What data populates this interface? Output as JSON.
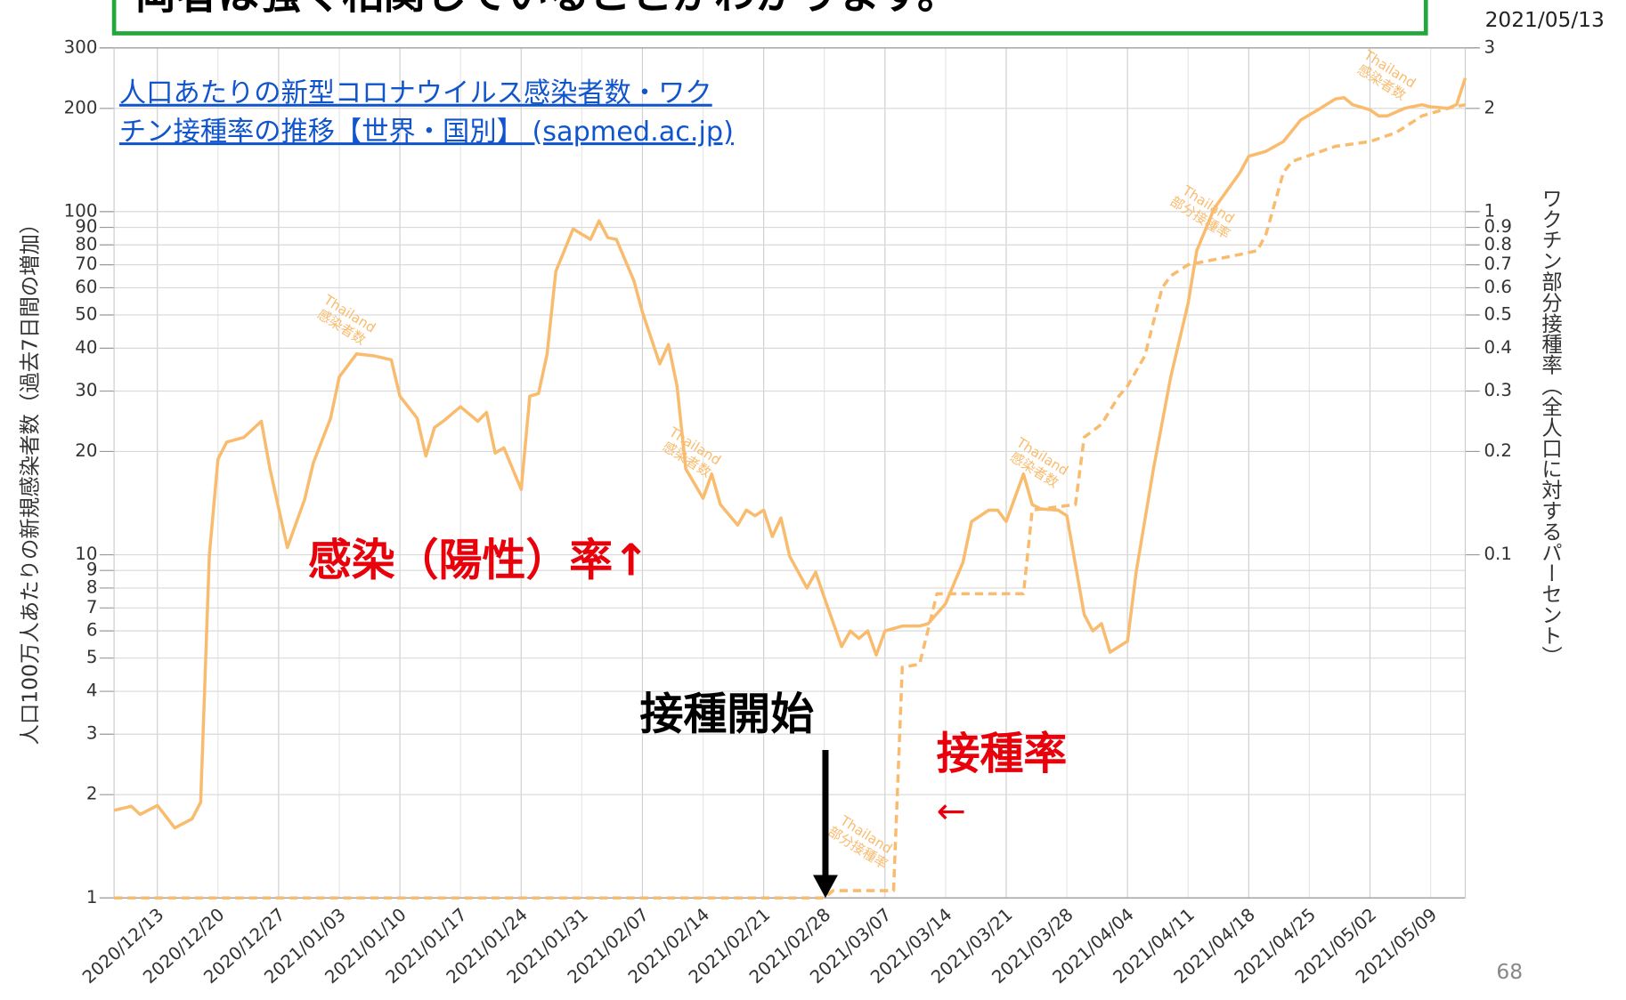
{
  "heading": "両者は強く相関していることがわかります。",
  "date": "2021/05/13",
  "page_number": "68",
  "link_lines": [
    "人口あたりの新型コロナウイルス感染者数・ワク",
    "チン接種率の推移【世界・国別】 (sapmed.ac.jp)"
  ],
  "callouts": {
    "infection_rate": "感染（陽性）率↑",
    "vaccination_start": "接種開始",
    "vaccination_rate": "接種率",
    "arrow": "←"
  },
  "chart_data": {
    "type": "line",
    "ylabel": "人口100万人あたりの新規感染者数（過去7日間の増加）",
    "y2label": "ワクチン部分接種率（全人口に対するパーセント）",
    "ylog": true,
    "y2log": true,
    "grid": true,
    "xlim": [
      "2020/12/08",
      "2021/05/13"
    ],
    "xticks": [
      "2020/12/13",
      "2020/12/20",
      "2020/12/27",
      "2021/01/03",
      "2021/01/10",
      "2021/01/17",
      "2021/01/24",
      "2021/01/31",
      "2021/02/07",
      "2021/02/14",
      "2021/02/21",
      "2021/02/28",
      "2021/03/07",
      "2021/03/14",
      "2021/03/21",
      "2021/03/28",
      "2021/04/04",
      "2021/04/11",
      "2021/04/18",
      "2021/04/25",
      "2021/05/02",
      "2021/05/09"
    ],
    "ylim": [
      1,
      300
    ],
    "yticks": [
      1,
      2,
      3,
      4,
      5,
      6,
      7,
      8,
      9,
      10,
      20,
      30,
      40,
      50,
      60,
      70,
      80,
      90,
      100,
      200,
      300
    ],
    "y2lim": [
      0.01,
      3
    ],
    "y2ticks": [
      0.1,
      0.2,
      0.3,
      0.4,
      0.5,
      0.6,
      0.7,
      0.8,
      0.9,
      1,
      2,
      3
    ],
    "annotations": [
      [
        "Thailand",
        "感染者数"
      ],
      [
        "Thailand",
        "感染者数"
      ],
      [
        "Thailand",
        "感染者数"
      ],
      [
        "Thailand",
        "感染者数"
      ],
      [
        "Thailand",
        "部分接種率"
      ],
      [
        "Thailand",
        "部分接種率"
      ]
    ],
    "annotation_color": "#f9bb6e",
    "series": [
      {
        "color": "#f9bb6e",
        "linestyle": "solid",
        "axis": "y",
        "x": [
          "2020/12/08",
          "2020/12/10",
          "2020/12/11",
          "2020/12/13",
          "2020/12/15",
          "2020/12/17",
          "2020/12/18",
          "2020/12/19",
          "2020/12/20",
          "2020/12/21",
          "2020/12/23",
          "2020/12/25",
          "2020/12/26",
          "2020/12/28",
          "2020/12/30",
          "2020/12/31",
          "2021/01/02",
          "2021/01/03",
          "2021/01/05",
          "2021/01/07",
          "2021/01/09",
          "2021/01/10",
          "2021/01/12",
          "2021/01/13",
          "2021/01/14",
          "2021/01/15",
          "2021/01/17",
          "2021/01/19",
          "2021/01/20",
          "2021/01/21",
          "2021/01/22",
          "2021/01/24",
          "2021/01/25",
          "2021/01/26",
          "2021/01/27",
          "2021/01/28",
          "2021/01/30",
          "2021/02/01",
          "2021/02/02",
          "2021/02/03",
          "2021/02/04",
          "2021/02/06",
          "2021/02/07",
          "2021/02/09",
          "2021/02/10",
          "2021/02/11",
          "2021/02/12",
          "2021/02/14",
          "2021/02/15",
          "2021/02/16",
          "2021/02/18",
          "2021/02/19",
          "2021/02/20",
          "2021/02/21",
          "2021/02/22",
          "2021/02/23",
          "2021/02/24",
          "2021/02/26",
          "2021/02/27",
          "2021/02/28",
          "2021/03/02",
          "2021/03/03",
          "2021/03/04",
          "2021/03/05",
          "2021/03/06",
          "2021/03/07",
          "2021/03/09",
          "2021/03/11",
          "2021/03/12",
          "2021/03/14",
          "2021/03/16",
          "2021/03/17",
          "2021/03/19",
          "2021/03/20",
          "2021/03/21",
          "2021/03/23",
          "2021/03/24",
          "2021/03/25",
          "2021/03/27",
          "2021/03/28",
          "2021/03/30",
          "2021/03/31",
          "2021/04/01",
          "2021/04/02",
          "2021/04/04",
          "2021/04/05",
          "2021/04/07",
          "2021/04/09",
          "2021/04/11",
          "2021/04/12",
          "2021/04/14",
          "2021/04/17",
          "2021/04/18",
          "2021/04/20",
          "2021/04/22",
          "2021/04/24",
          "2021/04/26",
          "2021/04/28",
          "2021/04/29",
          "2021/04/30",
          "2021/05/02",
          "2021/05/03",
          "2021/05/04",
          "2021/05/06",
          "2021/05/08",
          "2021/05/09",
          "2021/05/11",
          "2021/05/12",
          "2021/05/13"
        ],
        "values": [
          1.8,
          1.85,
          1.75,
          1.86,
          1.6,
          1.7,
          1.9,
          10,
          19,
          21.3,
          22,
          24.5,
          17.8,
          10.5,
          14.5,
          18.5,
          25,
          33,
          38.5,
          38,
          37,
          29,
          25,
          19.4,
          23.5,
          24.5,
          27,
          24.5,
          26,
          19.8,
          20.5,
          15.5,
          29,
          29.5,
          38.5,
          67,
          89,
          83,
          94,
          84,
          83,
          63,
          51,
          36,
          41,
          31,
          17.8,
          14.6,
          17.2,
          14,
          12.2,
          13.5,
          13,
          13.5,
          11.3,
          12.8,
          9.9,
          8,
          8.9,
          7.5,
          5.4,
          6,
          5.7,
          6,
          5.1,
          6,
          6.2,
          6.2,
          6.3,
          7.2,
          9.5,
          12.5,
          13.5,
          13.5,
          12.5,
          17.2,
          14,
          13.6,
          13.5,
          13,
          6.7,
          6,
          6.3,
          5.2,
          5.6,
          8.9,
          17.8,
          33,
          54,
          77,
          102,
          130,
          145,
          150,
          160,
          185,
          198,
          213,
          215,
          205,
          198,
          190,
          190,
          200,
          205,
          202,
          200,
          205,
          245
        ]
      },
      {
        "color": "#f9bb6e",
        "linestyle": "dashed",
        "axis": "y2",
        "x": [
          "2020/12/08",
          "2021/02/28",
          "2021/03/01",
          "2021/03/08",
          "2021/03/09",
          "2021/03/11",
          "2021/03/13",
          "2021/03/23",
          "2021/03/24",
          "2021/03/29",
          "2021/03/30",
          "2021/04/01",
          "2021/04/03",
          "2021/04/04",
          "2021/04/06",
          "2021/04/08",
          "2021/04/09",
          "2021/04/11",
          "2021/04/17",
          "2021/04/19",
          "2021/04/20",
          "2021/04/22",
          "2021/04/23",
          "2021/04/28",
          "2021/05/02",
          "2021/05/05",
          "2021/05/08",
          "2021/05/11",
          "2021/05/13"
        ],
        "values": [
          0.01,
          0.01,
          0.0105,
          0.0105,
          0.047,
          0.048,
          0.077,
          0.077,
          0.135,
          0.14,
          0.22,
          0.24,
          0.29,
          0.31,
          0.38,
          0.6,
          0.65,
          0.7,
          0.75,
          0.77,
          0.86,
          1.3,
          1.4,
          1.55,
          1.6,
          1.7,
          1.9,
          2.0,
          2.05
        ]
      }
    ]
  }
}
